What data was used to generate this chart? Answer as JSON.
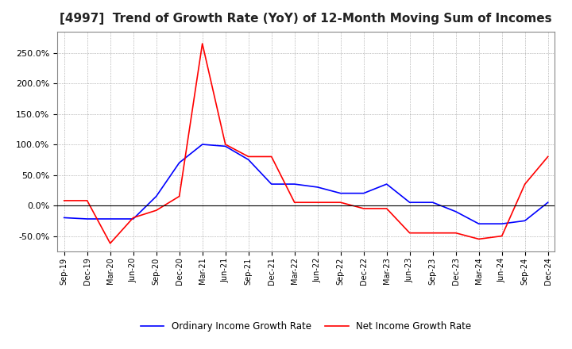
{
  "title": "[4997]  Trend of Growth Rate (YoY) of 12-Month Moving Sum of Incomes",
  "title_fontsize": 11,
  "background_color": "#ffffff",
  "legend_labels": [
    "Ordinary Income Growth Rate",
    "Net Income Growth Rate"
  ],
  "legend_colors": [
    "#0000ff",
    "#ff0000"
  ],
  "ylim": [
    -75,
    285
  ],
  "yticks": [
    -50.0,
    0.0,
    50.0,
    100.0,
    150.0,
    200.0,
    250.0
  ],
  "x_labels": [
    "Sep-19",
    "Dec-19",
    "Mar-20",
    "Jun-20",
    "Sep-20",
    "Dec-20",
    "Mar-21",
    "Jun-21",
    "Sep-21",
    "Dec-21",
    "Mar-22",
    "Jun-22",
    "Sep-22",
    "Dec-22",
    "Mar-23",
    "Jun-23",
    "Sep-23",
    "Dec-23",
    "Mar-24",
    "Jun-24",
    "Sep-24",
    "Dec-24"
  ],
  "ordinary_income_growth": [
    -20,
    -22,
    -22,
    -22,
    15,
    70,
    100,
    97,
    75,
    35,
    35,
    30,
    20,
    20,
    35,
    5,
    5,
    -10,
    -30,
    -30,
    -25,
    5
  ],
  "net_income_growth": [
    8,
    8,
    -62,
    -20,
    -8,
    15,
    265,
    100,
    80,
    80,
    5,
    5,
    5,
    -5,
    -5,
    -45,
    -45,
    -45,
    -55,
    -50,
    35,
    80
  ]
}
